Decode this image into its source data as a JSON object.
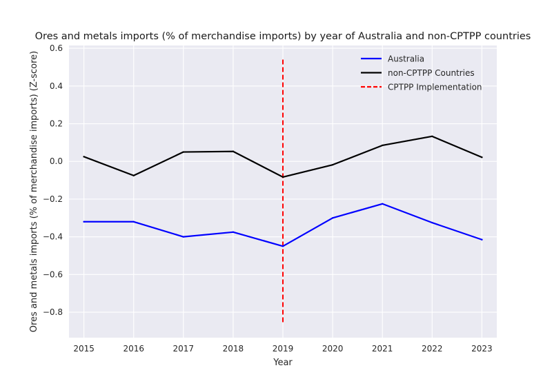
{
  "chart_data": {
    "type": "line",
    "title": "Ores and metals imports (% of merchandise imports) by year of Australia and non-CPTPP countries",
    "xlabel": "Year",
    "ylabel": "Ores and metals imports (% of merchandise imports) (Z-score)",
    "x": [
      2015,
      2016,
      2017,
      2018,
      2019,
      2020,
      2021,
      2022,
      2023
    ],
    "x_tick_labels": [
      "2015",
      "2016",
      "2017",
      "2018",
      "2019",
      "2020",
      "2021",
      "2022",
      "2023"
    ],
    "y_ticks": [
      0.6,
      0.4,
      0.2,
      0.0,
      -0.2,
      -0.4,
      -0.6,
      -0.8
    ],
    "y_tick_labels": [
      "0.6",
      "0.4",
      "0.2",
      "0.0",
      "−0.2",
      "−0.4",
      "−0.6",
      "−0.8"
    ],
    "xlim": [
      2014.7,
      2023.3
    ],
    "ylim": [
      -0.935,
      0.615
    ],
    "grid": true,
    "legend_position": "top-right",
    "series": [
      {
        "name": "Australia",
        "color": "#0000ff",
        "style": "solid",
        "values": [
          -0.32,
          -0.32,
          -0.4,
          -0.375,
          -0.45,
          -0.3,
          -0.225,
          -0.325,
          -0.415
        ]
      },
      {
        "name": "non-CPTPP Countries",
        "color": "#000000",
        "style": "solid",
        "values": [
          0.025,
          -0.075,
          0.05,
          0.053,
          -0.083,
          -0.018,
          0.085,
          0.133,
          0.022
        ]
      }
    ],
    "reference_line": {
      "name": "CPTPP Implementation",
      "color": "#ff0000",
      "style": "dashed",
      "x": 2019,
      "y_range": [
        -0.86,
        0.54
      ]
    }
  }
}
